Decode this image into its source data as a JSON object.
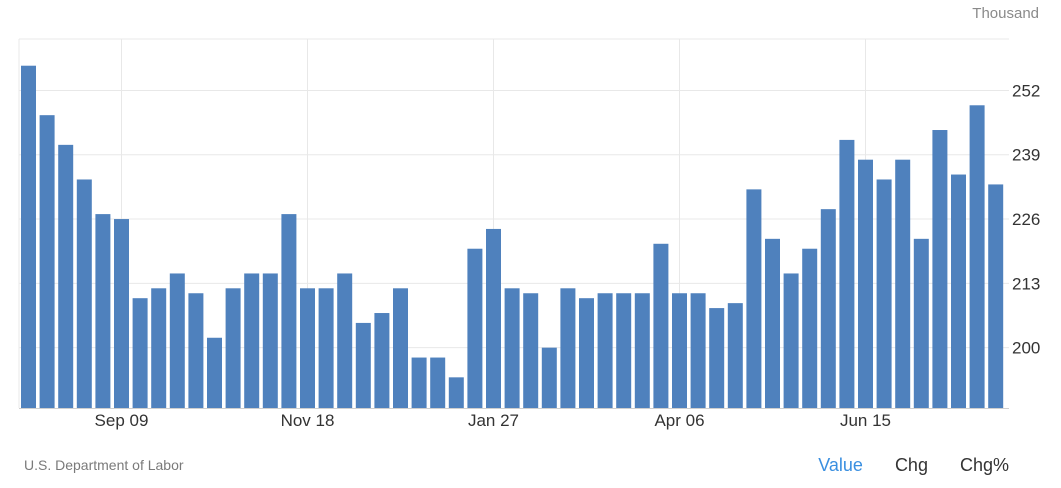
{
  "unit_label": "Thousand",
  "source": "U.S. Department of Labor",
  "tabs": [
    {
      "label": "Value",
      "active": true
    },
    {
      "label": "Chg",
      "active": false
    },
    {
      "label": "Chg%",
      "active": false
    }
  ],
  "colors": {
    "bar": "#4f81bd",
    "grid": "#e8e8e8",
    "active_tab": "#3a8fe0"
  },
  "chart_data": {
    "type": "bar",
    "title": "",
    "xlabel": "",
    "ylabel": "",
    "ylim": [
      187.8,
      262.4
    ],
    "yticks": [
      200,
      213,
      226,
      239,
      252
    ],
    "xtick_labels": [
      {
        "label": "Sep 09",
        "index": 5
      },
      {
        "label": "Nov 18",
        "index": 15
      },
      {
        "label": "Jan 27",
        "index": 25
      },
      {
        "label": "Apr 06",
        "index": 35
      },
      {
        "label": "Jun 15",
        "index": 45
      }
    ],
    "grid": true,
    "series": [
      {
        "values": [
          257,
          247,
          241,
          234,
          227,
          226,
          210,
          212,
          215,
          211,
          202,
          212,
          215,
          215,
          227,
          212,
          212,
          215,
          205,
          207,
          212,
          198,
          198,
          194,
          220,
          224,
          212,
          211,
          200,
          212,
          210,
          211,
          211,
          211,
          221,
          211,
          211,
          208,
          209,
          232,
          222,
          215,
          220,
          228,
          242,
          238,
          234,
          238,
          222,
          244,
          235,
          249,
          233
        ]
      }
    ]
  }
}
